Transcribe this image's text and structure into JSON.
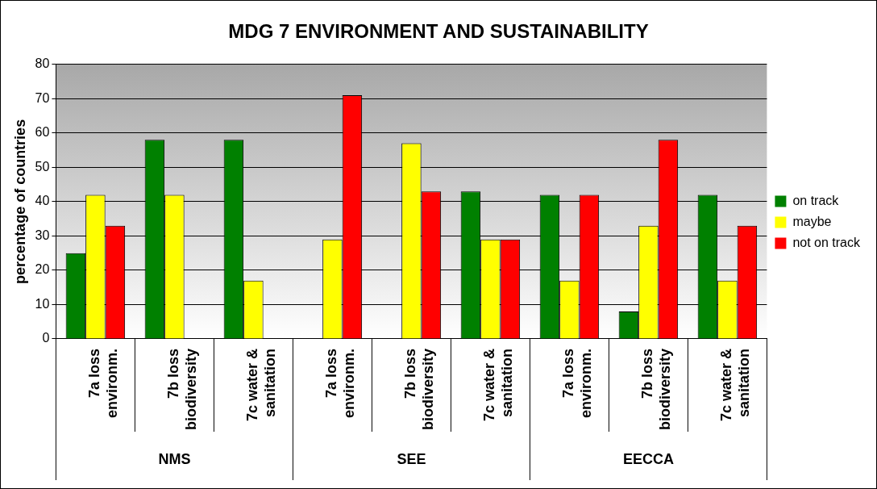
{
  "chart_data": {
    "type": "bar",
    "title": "MDG 7 ENVIRONMENT AND SUSTAINABILITY",
    "ylabel": "percentage of countries",
    "categories": [
      "7a loss environm.",
      "7b loss biodiversity",
      "7c water & sanitation",
      "7a loss environm.",
      "7b loss biodiversity",
      "7c water & sanitation",
      "7a loss environm.",
      "7b loss biodiversity",
      "7c water & sanitation"
    ],
    "series": [
      {
        "name": "on track",
        "color": "#008000",
        "values": [
          25,
          58,
          58,
          0,
          0,
          43,
          42,
          8,
          42
        ]
      },
      {
        "name": "maybe",
        "color": "#ffff00",
        "values": [
          42,
          42,
          17,
          29,
          57,
          29,
          17,
          33,
          17
        ]
      },
      {
        "name": "not on track",
        "color": "#ff0000",
        "values": [
          33,
          0,
          0,
          71,
          43,
          29,
          42,
          58,
          33
        ]
      }
    ],
    "annotations": [
      "NMS",
      "SEE",
      "EECCA"
    ],
    "ylim": [
      0,
      80
    ],
    "yticks": [
      0,
      10,
      20,
      30,
      40,
      50,
      60,
      70,
      80
    ],
    "grid": "y",
    "legend": "right"
  }
}
